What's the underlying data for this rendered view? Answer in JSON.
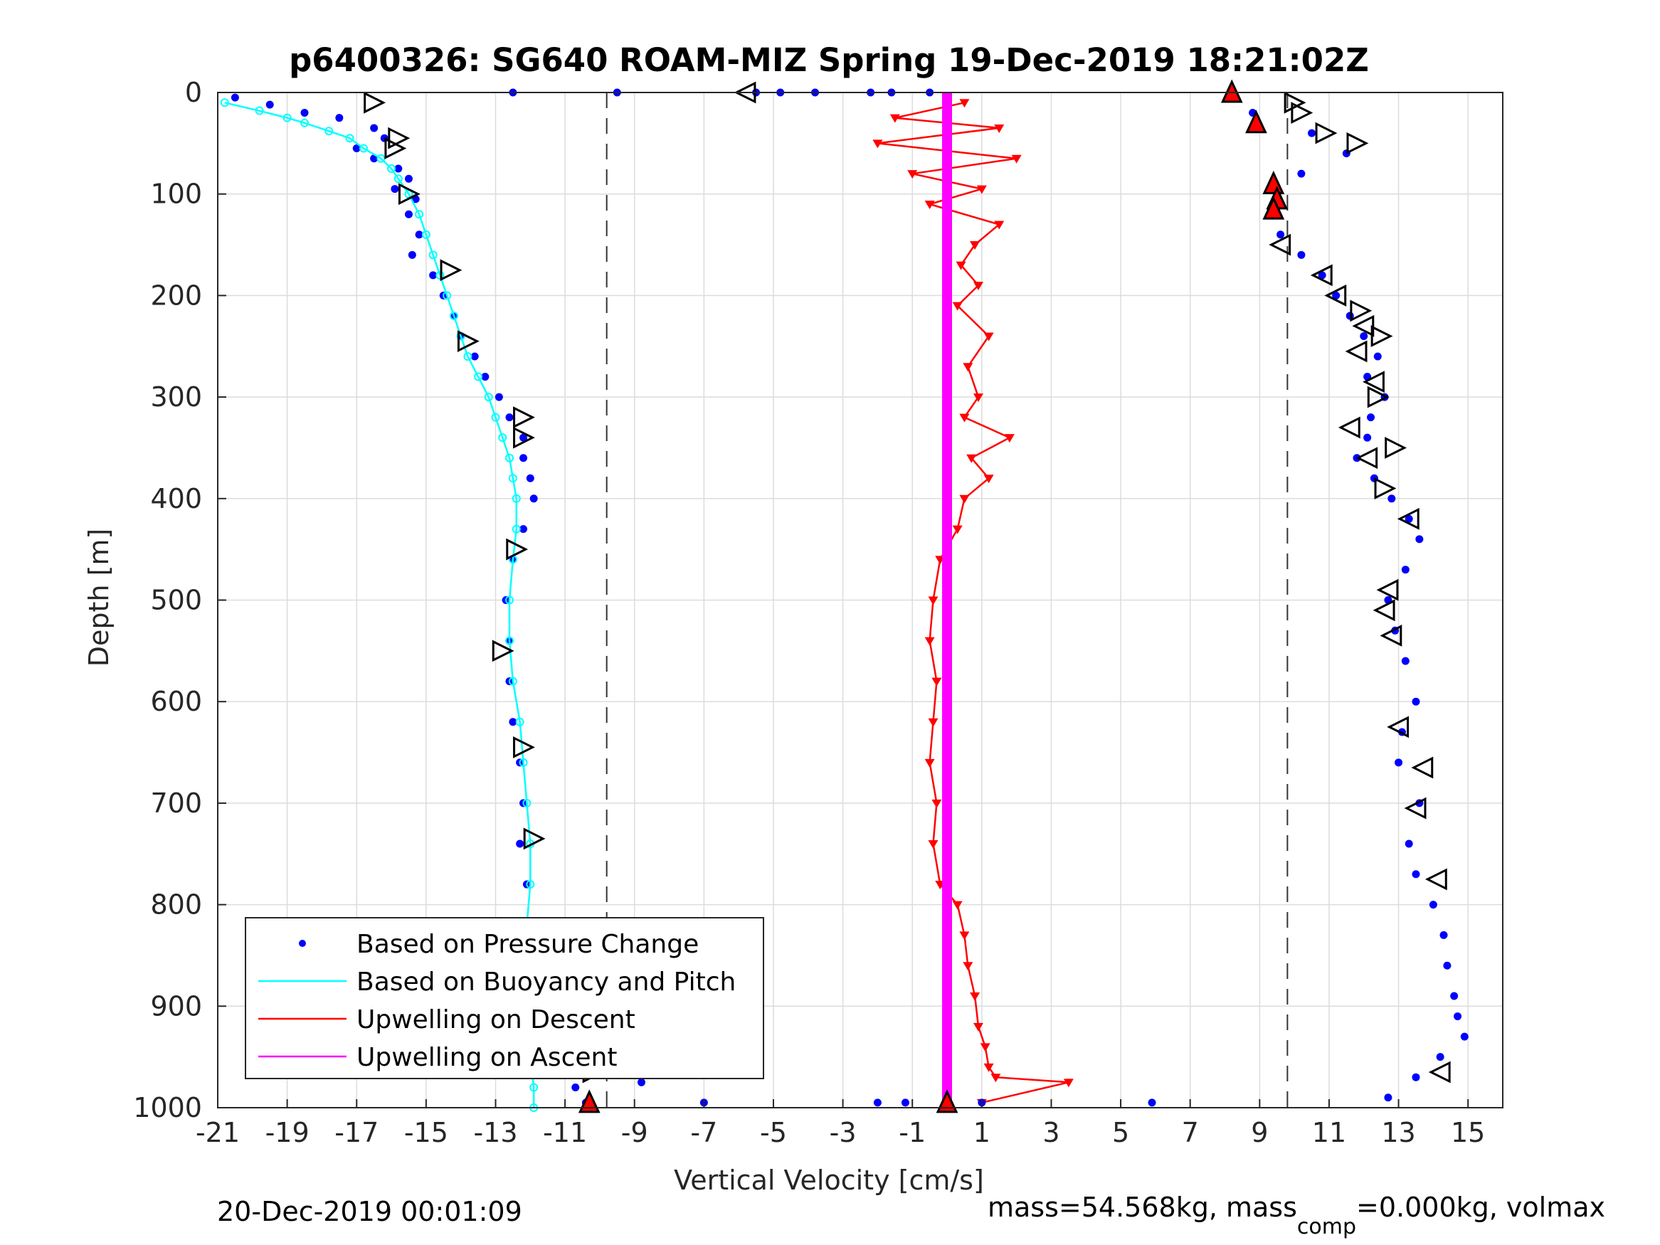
{
  "chart_data": {
    "type": "scatter",
    "title": "p6400326: SG640 ROAM-MIZ Spring 19-Dec-2019 18:21:02Z",
    "xlabel": "Vertical Velocity [cm/s]",
    "ylabel": "Depth [m]",
    "xlim": [
      -21,
      16
    ],
    "ylim": [
      1000,
      0
    ],
    "y_reversed": true,
    "grid": true,
    "xticks": [
      "-21",
      "-19",
      "-17",
      "-15",
      "-13",
      "-11",
      "-9",
      "-7",
      "-5",
      "-3",
      "-1",
      "1",
      "3",
      "5",
      "7",
      "9",
      "11",
      "13",
      "15"
    ],
    "yticks": [
      "0",
      "100",
      "200",
      "300",
      "400",
      "500",
      "600",
      "700",
      "800",
      "900",
      "1000"
    ],
    "legend_position": "bottom-left",
    "legend": [
      {
        "label": "Based on Pressure Change",
        "color": "#0000ff",
        "style": "dot"
      },
      {
        "label": "Based on Buoyancy and Pitch",
        "color": "#00ffff",
        "style": "line"
      },
      {
        "label": "Upwelling on Descent",
        "color": "#ff0000",
        "style": "line"
      },
      {
        "label": "Upwelling on Ascent",
        "color": "#ff00ff",
        "style": "line"
      }
    ],
    "reference_lines_x": [
      -9.8,
      9.8
    ],
    "series": [
      {
        "name": "Based on Pressure Change",
        "color": "#0000ff",
        "kind": "dots",
        "profile": "dive",
        "x": [
          -20.5,
          -19.5,
          -18.5,
          -17.5,
          -16.5,
          -16.2,
          -17,
          -16.5,
          -15.8,
          -15.5,
          -15.9,
          -15.3,
          -15.5,
          -15.2,
          -15.4,
          -14.8,
          -14.5,
          -14.2,
          -14,
          -13.6,
          -13.3,
          -12.9,
          -12.6,
          -12.2,
          -12.2,
          -12.0,
          -11.9,
          -12.2,
          -12.5,
          -12.7,
          -12.6,
          -12.6,
          -12.5,
          -12.3,
          -12.2,
          -12.3,
          -12.1,
          -11.9,
          -11.8,
          -11.6,
          -11.5,
          -11.2,
          -10.7,
          -10.4
        ],
        "y": [
          5,
          12,
          20,
          25,
          35,
          45,
          55,
          65,
          75,
          85,
          95,
          105,
          120,
          140,
          160,
          180,
          200,
          220,
          240,
          260,
          280,
          300,
          320,
          340,
          360,
          380,
          400,
          430,
          460,
          500,
          540,
          580,
          620,
          660,
          700,
          740,
          780,
          820,
          860,
          890,
          920,
          950,
          980,
          995
        ]
      },
      {
        "name": "Based on Buoyancy and Pitch",
        "color": "#00ffff",
        "kind": "line",
        "x": [
          -20.8,
          -19.8,
          -19,
          -18.5,
          -17.8,
          -17.2,
          -16.8,
          -16.3,
          -16,
          -15.8,
          -15.5,
          -15.2,
          -15,
          -14.8,
          -14.6,
          -14.4,
          -14.2,
          -14,
          -13.8,
          -13.5,
          -13.2,
          -13,
          -12.8,
          -12.6,
          -12.5,
          -12.4,
          -12.4,
          -12.5,
          -12.6,
          -12.6,
          -12.5,
          -12.3,
          -12.2,
          -12.1,
          -12.0,
          -12.0,
          -12.1,
          -12.1,
          -12.1,
          -12.0,
          -12.0,
          -11.9,
          -11.9
        ],
        "y": [
          10,
          18,
          25,
          30,
          38,
          45,
          55,
          65,
          75,
          85,
          100,
          120,
          140,
          160,
          180,
          200,
          220,
          240,
          260,
          280,
          300,
          320,
          340,
          360,
          380,
          400,
          430,
          460,
          500,
          540,
          580,
          620,
          660,
          700,
          740,
          780,
          820,
          860,
          890,
          920,
          950,
          980,
          1000
        ]
      },
      {
        "name": "Upwelling on Descent",
        "color": "#ff0000",
        "kind": "line",
        "x": [
          0.5,
          -1.5,
          1.5,
          -2,
          2,
          -1,
          1,
          -0.5,
          1.5,
          0.8,
          0.4,
          0.9,
          0.3,
          1.2,
          0.6,
          0.9,
          0.5,
          1.8,
          0.7,
          1.2,
          0.5,
          0.3,
          -0.2,
          -0.4,
          -0.5,
          -0.3,
          -0.4,
          -0.5,
          -0.3,
          -0.4,
          -0.2,
          0.3,
          0.5,
          0.6,
          0.8,
          0.9,
          1.1,
          1.2,
          1.4,
          3.5,
          1.0
        ],
        "y": [
          10,
          25,
          35,
          50,
          65,
          80,
          95,
          110,
          130,
          150,
          170,
          190,
          210,
          240,
          270,
          300,
          320,
          340,
          360,
          380,
          400,
          430,
          460,
          500,
          540,
          580,
          620,
          660,
          700,
          740,
          780,
          800,
          830,
          860,
          890,
          920,
          940,
          960,
          970,
          975,
          995
        ]
      },
      {
        "name": "Upwelling on Ascent",
        "color": "#ff00ff",
        "kind": "line",
        "x": [
          0.0,
          0.0,
          0.0,
          0.0,
          0.0,
          0.0,
          0.0,
          0.0,
          0.0,
          0.0,
          0.0
        ],
        "y": [
          0,
          100,
          200,
          300,
          400,
          500,
          600,
          700,
          800,
          900,
          1000
        ]
      },
      {
        "name": "Based on Pressure Change",
        "color": "#0000ff",
        "kind": "dots",
        "profile": "climb",
        "x": [
          8.2,
          8.8,
          10.5,
          11.5,
          10.2,
          9.5,
          9.3,
          9.6,
          10.2,
          10.8,
          11.2,
          11.6,
          12.0,
          12.4,
          12.1,
          12.6,
          12.2,
          12.1,
          11.8,
          12.3,
          12.8,
          13.3,
          13.6,
          13.2,
          12.7,
          12.9,
          13.2,
          13.5,
          13.1,
          13.0,
          13.6,
          13.3,
          13.5,
          14.0,
          14.3,
          14.4,
          14.6,
          14.7,
          14.9,
          14.2,
          13.5,
          12.7
        ],
        "y": [
          0,
          20,
          40,
          60,
          80,
          100,
          120,
          140,
          160,
          180,
          200,
          220,
          240,
          260,
          280,
          300,
          320,
          340,
          360,
          380,
          400,
          420,
          440,
          470,
          500,
          530,
          560,
          600,
          630,
          660,
          700,
          740,
          770,
          800,
          830,
          860,
          890,
          910,
          930,
          950,
          970,
          990
        ]
      }
    ],
    "markers": [
      {
        "name": "pitch-marker",
        "symbol": "triangle-right",
        "x": [
          -16.5,
          -15.8,
          -15.5,
          -14.3,
          -13.8,
          -12.2,
          -12.2,
          -12.4,
          -12.8,
          -12.2,
          -11.9,
          -11.2,
          -10.2,
          -15.9
        ],
        "y": [
          10,
          45,
          100,
          175,
          245,
          320,
          340,
          450,
          550,
          645,
          735,
          860,
          965,
          55
        ]
      },
      {
        "name": "pitch-marker",
        "symbol": "triangle-left",
        "x": [
          -5.8,
          9.6,
          10.8,
          11.2,
          12.0,
          11.8,
          12.3,
          11.6,
          12.1,
          12.7,
          13.3,
          12.6,
          12.8,
          13.0,
          13.7,
          13.5,
          14.1,
          14.2
        ],
        "y": [
          0,
          150,
          180,
          200,
          230,
          255,
          285,
          330,
          360,
          490,
          420,
          510,
          535,
          625,
          665,
          705,
          775,
          965
        ]
      },
      {
        "name": "pitch-marker",
        "symbol": "triangle-right",
        "x": [
          10.0,
          11.8,
          10.2,
          10.9,
          11.9,
          12.4,
          12.6,
          12.9,
          12.5
        ],
        "y": [
          10,
          50,
          20,
          40,
          215,
          300,
          390,
          350,
          240
        ]
      },
      {
        "name": "apogee-marker",
        "symbol": "triangle-up",
        "color": "#ff0000",
        "x": [
          8.2,
          8.9,
          9.4,
          9.5,
          9.4,
          -10.3,
          0.0
        ],
        "y": [
          0,
          30,
          90,
          105,
          115,
          995,
          995
        ]
      }
    ],
    "extra_points_blue": {
      "x": [
        -9.5,
        -12.5,
        -7,
        -8.8,
        -2,
        -1.2,
        5.9,
        1.0,
        -1.6,
        -5.5,
        -3.8,
        -4.8,
        -0.5,
        -2.2
      ],
      "y": [
        0,
        0,
        995,
        975,
        995,
        995,
        995,
        995,
        0,
        0,
        0,
        0,
        0,
        0
      ]
    },
    "footer_left": "20-Dec-2019 00:01:09",
    "footer_right_before_sub": "mass=54.568kg, mass",
    "footer_right_sub": "comp",
    "footer_right_after_sub": "=0.000kg, volmax"
  }
}
